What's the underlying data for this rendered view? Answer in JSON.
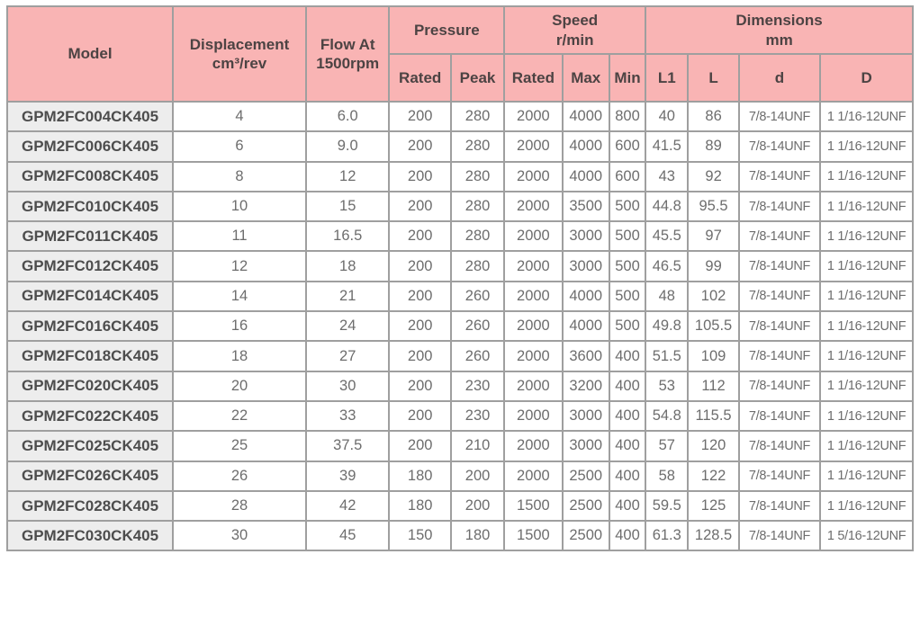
{
  "colors": {
    "header_bg": "#f9b4b4",
    "header_text": "#4c4343",
    "model_cell_bg": "#ededed",
    "model_text": "#4d4d4d",
    "data_text": "#6d6d6d",
    "grid_border": "#9f9f9f"
  },
  "header": {
    "model": "Model",
    "displacement": "Displacement\ncm³/rev",
    "flow": "Flow At\n1500rpm",
    "pressure_group": "Pressure",
    "pressure_rated": "Rated",
    "pressure_peak": "Peak",
    "speed_group": "Speed\nr/min",
    "speed_rated": "Rated",
    "speed_max": "Max",
    "speed_min": "Min",
    "dimensions_group": "Dimensions\nmm",
    "dim_l1": "L1",
    "dim_l": "L",
    "dim_d": "d",
    "dim_cap_d": "D"
  },
  "rows": [
    [
      "GPM2FC004CK405",
      "4",
      "6.0",
      "200",
      "280",
      "2000",
      "4000",
      "800",
      "40",
      "86",
      "7/8-14UNF",
      "1 1/16-12UNF"
    ],
    [
      "GPM2FC006CK405",
      "6",
      "9.0",
      "200",
      "280",
      "2000",
      "4000",
      "600",
      "41.5",
      "89",
      "7/8-14UNF",
      "1 1/16-12UNF"
    ],
    [
      "GPM2FC008CK405",
      "8",
      "12",
      "200",
      "280",
      "2000",
      "4000",
      "600",
      "43",
      "92",
      "7/8-14UNF",
      "1 1/16-12UNF"
    ],
    [
      "GPM2FC010CK405",
      "10",
      "15",
      "200",
      "280",
      "2000",
      "3500",
      "500",
      "44.8",
      "95.5",
      "7/8-14UNF",
      "1 1/16-12UNF"
    ],
    [
      "GPM2FC011CK405",
      "11",
      "16.5",
      "200",
      "280",
      "2000",
      "3000",
      "500",
      "45.5",
      "97",
      "7/8-14UNF",
      "1 1/16-12UNF"
    ],
    [
      "GPM2FC012CK405",
      "12",
      "18",
      "200",
      "280",
      "2000",
      "3000",
      "500",
      "46.5",
      "99",
      "7/8-14UNF",
      "1 1/16-12UNF"
    ],
    [
      "GPM2FC014CK405",
      "14",
      "21",
      "200",
      "260",
      "2000",
      "4000",
      "500",
      "48",
      "102",
      "7/8-14UNF",
      "1 1/16-12UNF"
    ],
    [
      "GPM2FC016CK405",
      "16",
      "24",
      "200",
      "260",
      "2000",
      "4000",
      "500",
      "49.8",
      "105.5",
      "7/8-14UNF",
      "1 1/16-12UNF"
    ],
    [
      "GPM2FC018CK405",
      "18",
      "27",
      "200",
      "260",
      "2000",
      "3600",
      "400",
      "51.5",
      "109",
      "7/8-14UNF",
      "1 1/16-12UNF"
    ],
    [
      "GPM2FC020CK405",
      "20",
      "30",
      "200",
      "230",
      "2000",
      "3200",
      "400",
      "53",
      "112",
      "7/8-14UNF",
      "1 1/16-12UNF"
    ],
    [
      "GPM2FC022CK405",
      "22",
      "33",
      "200",
      "230",
      "2000",
      "3000",
      "400",
      "54.8",
      "115.5",
      "7/8-14UNF",
      "1 1/16-12UNF"
    ],
    [
      "GPM2FC025CK405",
      "25",
      "37.5",
      "200",
      "210",
      "2000",
      "3000",
      "400",
      "57",
      "120",
      "7/8-14UNF",
      "1 1/16-12UNF"
    ],
    [
      "GPM2FC026CK405",
      "26",
      "39",
      "180",
      "200",
      "2000",
      "2500",
      "400",
      "58",
      "122",
      "7/8-14UNF",
      "1 1/16-12UNF"
    ],
    [
      "GPM2FC028CK405",
      "28",
      "42",
      "180",
      "200",
      "1500",
      "2500",
      "400",
      "59.5",
      "125",
      "7/8-14UNF",
      "1 1/16-12UNF"
    ],
    [
      "GPM2FC030CK405",
      "30",
      "45",
      "150",
      "180",
      "1500",
      "2500",
      "400",
      "61.3",
      "128.5",
      "7/8-14UNF",
      "1 5/16-12UNF"
    ]
  ]
}
